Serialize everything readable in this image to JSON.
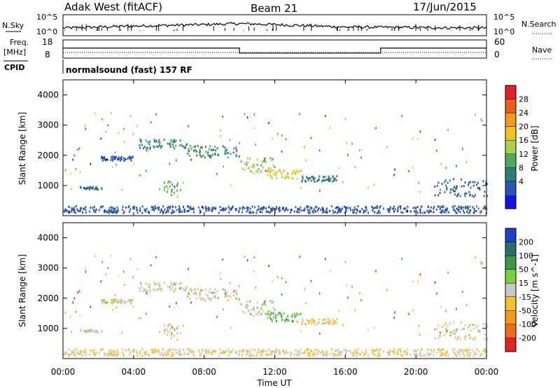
{
  "header": {
    "station": "Adak West (fitACF)",
    "beam": "Beam 21",
    "date": "17/Jun/2015"
  },
  "sky_panel": {
    "left_label": "N.Sky",
    "right_label": "N.Search",
    "ticks_left": [
      "10^5",
      "10^0"
    ],
    "ticks_right": [
      "10^5",
      "10^0"
    ]
  },
  "freq_panel": {
    "left_label_1": "Freq.",
    "left_label_2": "[MHz]",
    "ticks_left": [
      "18",
      "8"
    ],
    "ticks_right": [
      "60",
      "0"
    ],
    "right_label": "Nave"
  },
  "cpid": {
    "label": "CPID",
    "text": "normalsound (fast) 157 RF"
  },
  "power_panel": {
    "ylabel": "Slant Range [km]",
    "yticks": [
      "4000",
      "3000",
      "2000",
      "1000"
    ],
    "colorbar_label": "Power [dB]",
    "colorbar_ticks": [
      "28",
      "24",
      "20",
      "16",
      "12",
      "8",
      "4"
    ],
    "colors": [
      "#1414e6",
      "#2a55b5",
      "#2c7f73",
      "#53a95e",
      "#a8d24a",
      "#f0c419",
      "#f39a1c",
      "#ee5d1b",
      "#e4202a"
    ]
  },
  "velocity_panel": {
    "ylabel": "Slant Range [km]",
    "yticks": [
      "4000",
      "3000",
      "2000",
      "1000"
    ],
    "colorbar_label": "Velocity [m s^-1]",
    "colorbar_ticks": [
      "200",
      "100",
      "50",
      "15",
      "-15",
      "-50",
      "-100",
      "-200"
    ],
    "colors": [
      "#1f3fc9",
      "#2b6f6b",
      "#3a9a45",
      "#78d23c",
      "#c8c8c8",
      "#f6c22a",
      "#f39a1c",
      "#ef6a1a",
      "#e42020"
    ]
  },
  "xaxis": {
    "label": "Time UT",
    "ticks": [
      "00:00",
      "04:00",
      "08:00",
      "12:00",
      "16:00",
      "20:00",
      "00:00"
    ]
  },
  "chart_data": [
    {
      "type": "line",
      "title": "N.Sky / N.Search",
      "x": [
        "00:00",
        "04:00",
        "08:00",
        "10:00",
        "12:00",
        "16:00",
        "20:00",
        "24:00"
      ],
      "series": [
        {
          "name": "N.Sky",
          "values": [
            0.5,
            0.7,
            0.85,
            0.95,
            0.85,
            0.6,
            0.55,
            0.5
          ]
        }
      ]
    },
    {
      "type": "line",
      "title": "Frequency",
      "ylabel": "[MHz]",
      "x": [
        "00:00",
        "10:00",
        "10:00",
        "18:00",
        "18:00",
        "24:00"
      ],
      "series": [
        {
          "name": "Freq.",
          "values": [
            14,
            14,
            11,
            11,
            14,
            14
          ]
        },
        {
          "name": "Nave",
          "values": [
            10,
            10,
            10,
            10,
            10,
            10
          ]
        }
      ],
      "ylim": [
        8,
        18
      ]
    },
    {
      "type": "heatmap",
      "title": "Power [dB]",
      "xlabel": "Time UT",
      "ylabel": "Slant Range [km]",
      "xlim": [
        "00:00",
        "24:00"
      ],
      "ylim": [
        0,
        4500
      ],
      "zlim": [
        0,
        30
      ],
      "features": [
        {
          "t0": 0.9,
          "t1": 2.2,
          "r0": 900,
          "r1": 1000,
          "value": 6
        },
        {
          "t0": 2.0,
          "t1": 4.0,
          "r0": 1850,
          "r1": 2000,
          "value": 5
        },
        {
          "t0": 4.3,
          "t1": 7.0,
          "r0": 2250,
          "r1": 2550,
          "value": 9
        },
        {
          "t0": 7.0,
          "t1": 10.0,
          "r0": 1950,
          "r1": 2350,
          "value": 10
        },
        {
          "t0": 10.0,
          "t1": 12.0,
          "r0": 1450,
          "r1": 1950,
          "value": 14
        },
        {
          "t0": 11.5,
          "t1": 13.5,
          "r0": 1250,
          "r1": 1550,
          "value": 18
        },
        {
          "t0": 13.5,
          "t1": 15.5,
          "r0": 1150,
          "r1": 1350,
          "value": 8
        },
        {
          "t0": 5.7,
          "t1": 6.8,
          "r0": 650,
          "r1": 1250,
          "value": 12
        },
        {
          "t0": 21.0,
          "t1": 24.0,
          "r0": 650,
          "r1": 1250,
          "value": 6
        },
        {
          "t0": 0.0,
          "t1": 24.0,
          "r0": 120,
          "r1": 350,
          "value": 5
        }
      ]
    },
    {
      "type": "heatmap",
      "title": "Velocity [m s^-1]",
      "xlabel": "Time UT",
      "ylabel": "Slant Range [km]",
      "xlim": [
        "00:00",
        "24:00"
      ],
      "ylim": [
        0,
        4500
      ],
      "zlim": [
        -250,
        250
      ],
      "features": [
        {
          "t0": 0.9,
          "t1": 2.2,
          "r0": 900,
          "r1": 1000,
          "value": -10
        },
        {
          "t0": 2.0,
          "t1": 4.0,
          "r0": 1850,
          "r1": 2000,
          "value": 0
        },
        {
          "t0": 4.3,
          "t1": 7.0,
          "r0": 2250,
          "r1": 2550,
          "value": 0
        },
        {
          "t0": 7.0,
          "t1": 10.0,
          "r0": 1950,
          "r1": 2350,
          "value": 0
        },
        {
          "t0": 10.0,
          "t1": 12.0,
          "r0": 1450,
          "r1": 1950,
          "value": -30
        },
        {
          "t0": 11.5,
          "t1": 13.5,
          "r0": 1250,
          "r1": 1550,
          "value": -70
        },
        {
          "t0": 13.5,
          "t1": 15.5,
          "r0": 1150,
          "r1": 1350,
          "value": 40
        },
        {
          "t0": 5.7,
          "t1": 6.8,
          "r0": 650,
          "r1": 1250,
          "value": 0
        },
        {
          "t0": 21.0,
          "t1": 24.0,
          "r0": 650,
          "r1": 1250,
          "value": 0
        },
        {
          "t0": 0.0,
          "t1": 24.0,
          "r0": 120,
          "r1": 350,
          "value": 30
        }
      ]
    }
  ]
}
